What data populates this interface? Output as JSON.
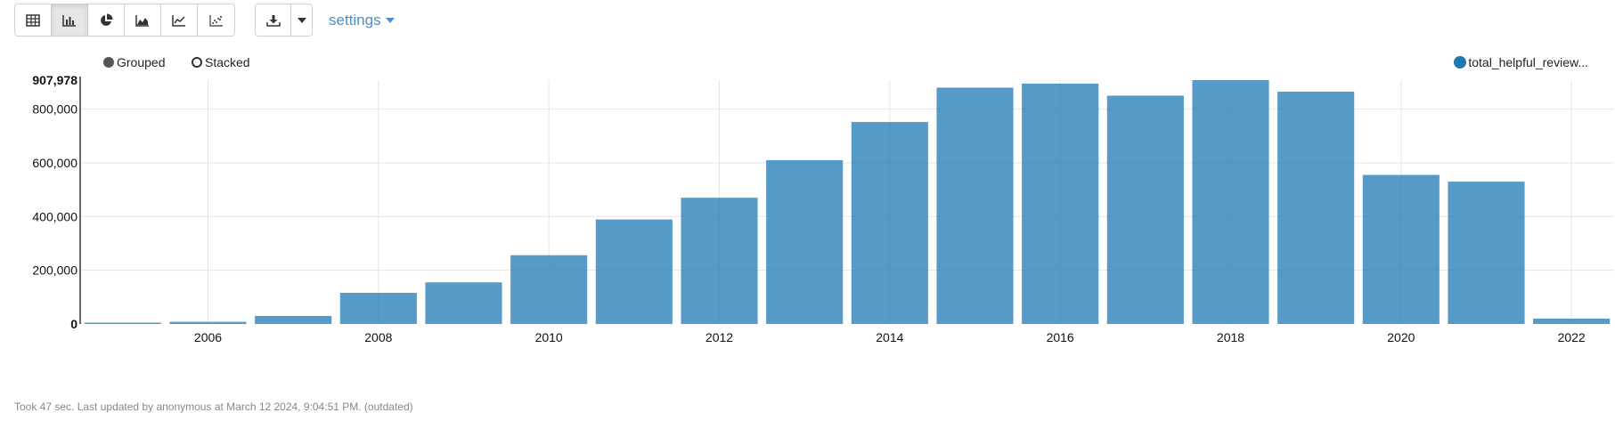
{
  "toolbar": {
    "chart_buttons": [
      {
        "icon": "table-icon",
        "active": false
      },
      {
        "icon": "bar-chart-icon",
        "active": true
      },
      {
        "icon": "pie-chart-icon",
        "active": false
      },
      {
        "icon": "area-chart-icon",
        "active": false
      },
      {
        "icon": "line-chart-icon",
        "active": false
      },
      {
        "icon": "scatter-chart-icon",
        "active": false
      }
    ],
    "download_icon": "download-icon",
    "settings_label": "settings"
  },
  "modes": {
    "grouped": "Grouped",
    "stacked": "Stacked",
    "selected": "grouped"
  },
  "colors": {
    "bar": "#1f77b4",
    "accent": "#4a90cf"
  },
  "chart_data": {
    "type": "bar",
    "x": [
      2005,
      2006,
      2007,
      2008,
      2009,
      2010,
      2011,
      2012,
      2013,
      2014,
      2015,
      2016,
      2017,
      2018,
      2019,
      2020,
      2021,
      2022
    ],
    "series": [
      {
        "name": "total_helpful_review...",
        "values": [
          5000,
          8000,
          30000,
          116000,
          155000,
          256000,
          389000,
          470000,
          610000,
          752000,
          880000,
          895000,
          850000,
          907978,
          865000,
          555000,
          530000,
          20000
        ]
      }
    ],
    "xticks": [
      2006,
      2008,
      2010,
      2012,
      2014,
      2016,
      2018,
      2020,
      2022
    ],
    "xtick_labels": [
      "2006",
      "2008",
      "2010",
      "2012",
      "2014",
      "2016",
      "2018",
      "2020",
      "2022"
    ],
    "yticks": [
      0,
      200000,
      400000,
      600000,
      800000
    ],
    "ytick_labels": [
      "0",
      "200,000",
      "400,000",
      "600,000",
      "800,000"
    ],
    "ymax_label": "907,978",
    "ylim": [
      0,
      907978
    ],
    "xlim": [
      2004.5,
      2022.5
    ],
    "grid": true,
    "legend_position": "top-right"
  },
  "footer": "Took 47 sec. Last updated by anonymous at March 12 2024, 9:04:51 PM. (outdated)"
}
